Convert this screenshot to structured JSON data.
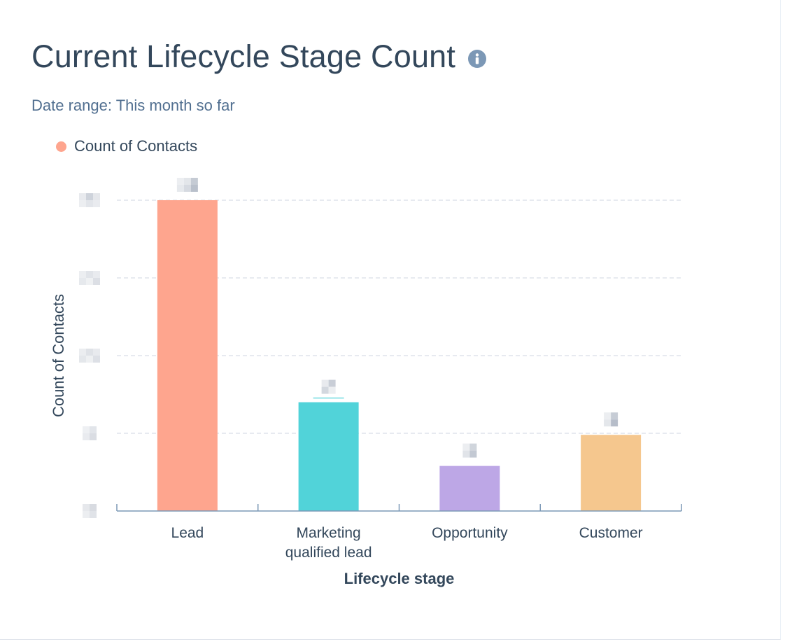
{
  "title": "Current Lifecycle Stage Count",
  "subtitle": {
    "prefix": "Date range:",
    "value": "This month so far"
  },
  "icons": {
    "info": "info-icon"
  },
  "colors": {
    "lead": "#fea58e",
    "mql": "#51d3d9",
    "opportunity": "#bda7e6",
    "customer": "#f5c78e",
    "legend": "#fea58e",
    "grid": "#dfe3eb",
    "axis": "#7c98b6",
    "text": "#33475b"
  },
  "chart_data": {
    "type": "bar",
    "categories": [
      "Lead",
      "Marketing qualified lead",
      "Opportunity",
      "Customer"
    ],
    "category_lines": [
      [
        "Lead"
      ],
      [
        "Marketing",
        "qualified lead"
      ],
      [
        "Opportunity"
      ],
      [
        "Customer"
      ]
    ],
    "series": [
      {
        "name": "Count of Contacts",
        "values": [
          100,
          35,
          14.5,
          24.5
        ]
      }
    ],
    "xlabel": "Lifecycle stage",
    "ylabel": "Count of Contacts",
    "ylim": [
      0,
      100
    ],
    "yticks": [
      0,
      25,
      50,
      75,
      100
    ],
    "grid": true,
    "legend_position": "top-left",
    "bar_colors": [
      "#fea58e",
      "#51d3d9",
      "#bda7e6",
      "#f5c78e"
    ],
    "labels_obscured": true
  }
}
